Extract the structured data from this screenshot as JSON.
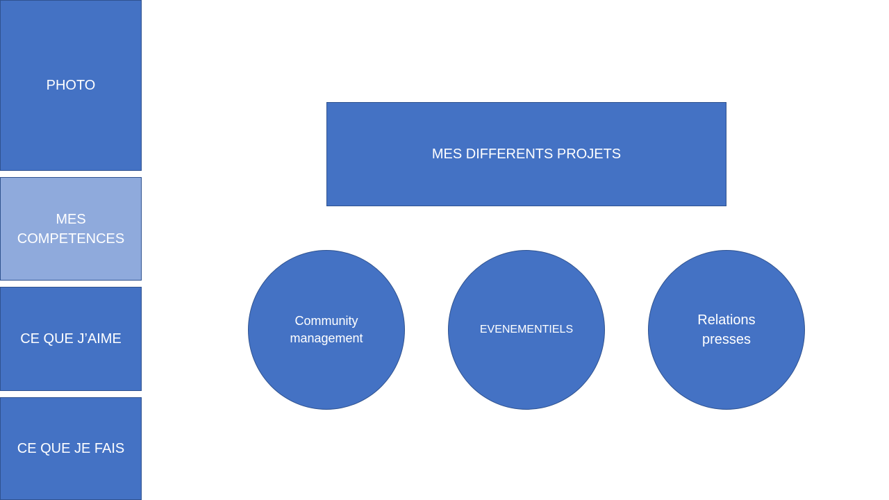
{
  "nav": {
    "photo": "PHOTO",
    "competences": "MES COMPETENCES",
    "aime": "CE QUE J’AIME",
    "fais": "CE QUE JE FAIS"
  },
  "main": {
    "header": "MES DIFFERENTS PROJETS",
    "projects": [
      {
        "label": "Community management"
      },
      {
        "label": "EVENEMENTIELS"
      },
      {
        "label": "Relations presses"
      }
    ]
  },
  "colors": {
    "primary": "#4472C4",
    "selected": "#8FAADC",
    "border": "#2F528F",
    "text": "#FFFFFF"
  }
}
